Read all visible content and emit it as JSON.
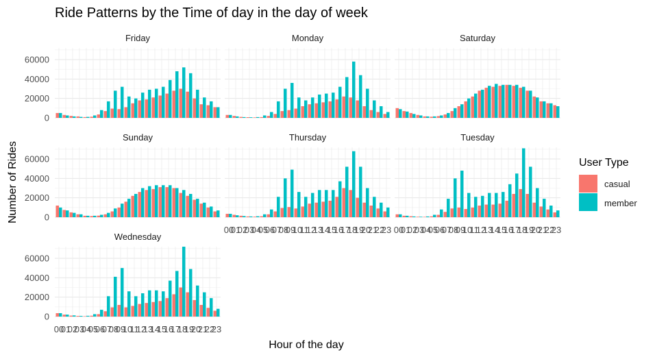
{
  "chart_data": {
    "type": "bar",
    "title": "Ride Patterns by the Time of day in the day of week",
    "xlabel": "Hour of the day",
    "ylabel": "Number of Rides",
    "ylim": [
      0,
      72000
    ],
    "y_ticks": [
      0,
      20000,
      40000,
      60000
    ],
    "y_tick_labels": [
      "0",
      "20000",
      "40000",
      "60000"
    ],
    "categories": [
      "0",
      "1",
      "2",
      "3",
      "4",
      "5",
      "6",
      "7",
      "8",
      "9",
      "10",
      "11",
      "12",
      "13",
      "14",
      "15",
      "16",
      "17",
      "18",
      "19",
      "20",
      "21",
      "22",
      "23"
    ],
    "x_tick_labels": [
      "00",
      "01",
      "02",
      "03",
      "04",
      "05",
      "06",
      "07",
      "08",
      "09",
      "10",
      "11",
      "12",
      "13",
      "14",
      "15",
      "16",
      "17",
      "18",
      "19",
      "20",
      "21",
      "22",
      "23"
    ],
    "facet_order": [
      "Friday",
      "Monday",
      "Saturday",
      "Sunday",
      "Thursday",
      "Tuesday",
      "Wednesday"
    ],
    "grid": true,
    "legend": {
      "title": "User Type",
      "position": "right",
      "entries": [
        {
          "label": "casual",
          "color": "#F8766D"
        },
        {
          "label": "member",
          "color": "#00BFC4"
        }
      ]
    },
    "facets": [
      {
        "name": "Friday",
        "series": [
          {
            "name": "casual",
            "values": [
              5000,
              3000,
              2000,
              1500,
              800,
              1200,
              3500,
              7000,
              9500,
              9000,
              11000,
              15000,
              18000,
              19000,
              21000,
              23000,
              25000,
              28000,
              30000,
              27000,
              20000,
              14000,
              13000,
              11000
            ]
          },
          {
            "name": "member",
            "values": [
              5000,
              2500,
              1500,
              1000,
              1000,
              2500,
              8000,
              17000,
              28000,
              32000,
              22000,
              20000,
              26000,
              29000,
              30000,
              32000,
              39000,
              48000,
              52000,
              46000,
              29000,
              21000,
              17000,
              11000
            ]
          }
        ]
      },
      {
        "name": "Monday",
        "series": [
          {
            "name": "casual",
            "values": [
              3000,
              2000,
              1000,
              700,
              500,
              800,
              2000,
              4000,
              7000,
              8000,
              9500,
              12000,
              14000,
              15000,
              16000,
              17000,
              19000,
              22000,
              21000,
              18000,
              12000,
              8000,
              6000,
              4000
            ]
          },
          {
            "name": "member",
            "values": [
              3000,
              1500,
              800,
              600,
              800,
              2500,
              6000,
              17000,
              30000,
              36000,
              21000,
              18000,
              21000,
              24000,
              25000,
              26000,
              32000,
              42000,
              58000,
              44000,
              30000,
              18000,
              12000,
              6000
            ]
          }
        ]
      },
      {
        "name": "Saturday",
        "series": [
          {
            "name": "casual",
            "values": [
              10000,
              7000,
              5000,
              3000,
              1500,
              1200,
              1800,
              3500,
              7000,
              12000,
              17000,
              22000,
              28000,
              31000,
              32000,
              33000,
              34000,
              33000,
              31000,
              28000,
              22000,
              17000,
              15000,
              13000
            ]
          },
          {
            "name": "member",
            "values": [
              9000,
              6500,
              4000,
              2500,
              1500,
              1500,
              2500,
              5000,
              10000,
              14000,
              20000,
              25000,
              29000,
              33000,
              35000,
              34000,
              34000,
              34000,
              32000,
              28000,
              21000,
              17000,
              15000,
              12000
            ]
          }
        ]
      },
      {
        "name": "Sunday",
        "series": [
          {
            "name": "casual",
            "values": [
              12000,
              7500,
              5000,
              3000,
              1500,
              1200,
              1600,
              3000,
              6000,
              10000,
              16000,
              22000,
              26000,
              28000,
              29000,
              31000,
              31000,
              30000,
              25000,
              22000,
              18000,
              14000,
              10000,
              6000
            ]
          },
          {
            "name": "member",
            "values": [
              10000,
              7000,
              4500,
              3000,
              1500,
              1500,
              2500,
              4500,
              9000,
              14000,
              19000,
              24000,
              30000,
              32000,
              33000,
              33000,
              33000,
              30000,
              28000,
              24000,
              19000,
              15000,
              11000,
              7000
            ]
          }
        ]
      },
      {
        "name": "Thursday",
        "series": [
          {
            "name": "casual",
            "values": [
              3500,
              2500,
              1500,
              800,
              600,
              1000,
              3000,
              6000,
              9500,
              10500,
              9000,
              11000,
              14000,
              15000,
              16000,
              17000,
              21000,
              30000,
              28000,
              20000,
              15000,
              12000,
              9000,
              6000
            ]
          },
          {
            "name": "member",
            "values": [
              3500,
              2000,
              1200,
              800,
              1000,
              3000,
              8000,
              21000,
              40000,
              49000,
              26000,
              21000,
              25000,
              28000,
              28000,
              28000,
              37000,
              52000,
              68000,
              52000,
              30000,
              21000,
              15000,
              10000
            ]
          }
        ]
      },
      {
        "name": "Tuesday",
        "series": [
          {
            "name": "casual",
            "values": [
              3000,
              1500,
              1000,
              500,
              400,
              900,
              2500,
              5500,
              9000,
              10000,
              8500,
              10000,
              12000,
              13000,
              13000,
              14000,
              17000,
              24000,
              29000,
              24000,
              15000,
              11000,
              8000,
              5000
            ]
          },
          {
            "name": "member",
            "values": [
              3000,
              1500,
              800,
              500,
              800,
              2500,
              8000,
              19000,
              40000,
              48000,
              25000,
              21000,
              22000,
              25000,
              25000,
              26000,
              34000,
              45000,
              71000,
              52000,
              30000,
              19000,
              12000,
              7000
            ]
          }
        ]
      },
      {
        "name": "Wednesday",
        "series": [
          {
            "name": "casual",
            "values": [
              3500,
              2000,
              1000,
              700,
              400,
              900,
              2500,
              5500,
              9500,
              12000,
              9500,
              11000,
              13000,
              14000,
              15000,
              16000,
              19000,
              23000,
              30000,
              25000,
              17000,
              12000,
              9000,
              6000
            ]
          },
          {
            "name": "member",
            "values": [
              3500,
              2000,
              1200,
              700,
              800,
              2500,
              7000,
              21000,
              41000,
              50000,
              26000,
              21000,
              24000,
              27000,
              27000,
              26000,
              37000,
              47000,
              72000,
              49000,
              32000,
              25000,
              19000,
              8000
            ]
          }
        ]
      }
    ]
  }
}
